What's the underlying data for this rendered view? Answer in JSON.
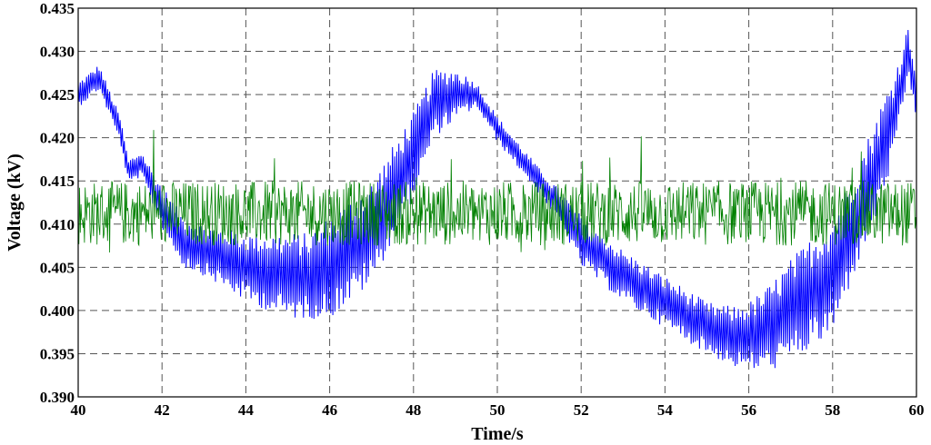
{
  "chart_data": {
    "type": "line",
    "title": "",
    "xlabel": "Time/s",
    "ylabel": "Voltage (kV)",
    "xlim": [
      40,
      60
    ],
    "ylim": [
      0.39,
      0.435
    ],
    "x_ticks": [
      "40",
      "42",
      "44",
      "46",
      "48",
      "50",
      "52",
      "54",
      "56",
      "58",
      "60"
    ],
    "y_ticks": [
      "0.390",
      "0.395",
      "0.400",
      "0.405",
      "0.410",
      "0.415",
      "0.420",
      "0.425",
      "0.430",
      "0.435"
    ],
    "grid": true,
    "legend": "none",
    "sample_step": 0.025,
    "series": [
      {
        "color": "#0000ff",
        "x": [
          40,
          40.5,
          41,
          41.2,
          41.5,
          42,
          42.5,
          43,
          44,
          45,
          45.5,
          46,
          47,
          48,
          48.5,
          49,
          49.5,
          50,
          50.5,
          51,
          51.5,
          52,
          53,
          54,
          55,
          55.6,
          56,
          56.5,
          57,
          58,
          58.5,
          59,
          59.5,
          59.8,
          60
        ],
        "y": [
          0.425,
          0.427,
          0.421,
          0.416,
          0.417,
          0.412,
          0.408,
          0.407,
          0.405,
          0.404,
          0.404,
          0.405,
          0.409,
          0.418,
          0.424,
          0.425,
          0.425,
          0.421,
          0.418,
          0.415,
          0.412,
          0.408,
          0.404,
          0.401,
          0.398,
          0.397,
          0.397,
          0.398,
          0.4,
          0.404,
          0.41,
          0.416,
          0.423,
          0.43,
          0.425
        ],
        "envelope_halfwidth": [
          0.0015,
          0.0015,
          0.0015,
          0.0015,
          0.0015,
          0.0025,
          0.003,
          0.003,
          0.004,
          0.005,
          0.005,
          0.006,
          0.006,
          0.005,
          0.004,
          0.003,
          0.0015,
          0.0015,
          0.0015,
          0.0015,
          0.002,
          0.003,
          0.003,
          0.003,
          0.003,
          0.0035,
          0.004,
          0.005,
          0.006,
          0.007,
          0.006,
          0.006,
          0.005,
          0.003,
          0.003
        ]
      },
      {
        "color": "#008000",
        "mean": 0.4113,
        "typical_range": [
          0.4075,
          0.415
        ],
        "extremes": [
          0.406,
          0.422
        ]
      }
    ]
  }
}
